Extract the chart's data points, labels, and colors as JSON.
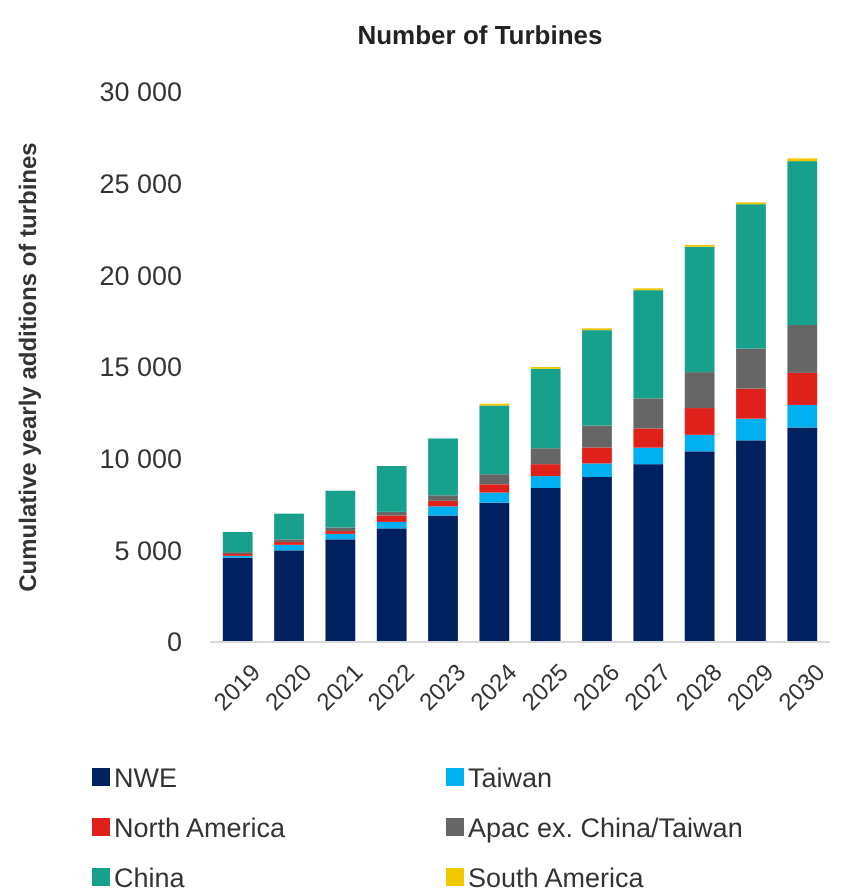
{
  "chart_data": {
    "type": "bar",
    "title": "Number of Turbines",
    "ylabel": "Cumulative yearly additions of turbines",
    "stacked": true,
    "legend": "bottom",
    "grid": false,
    "categories": [
      "2019",
      "2020",
      "2021",
      "2022",
      "2023",
      "2024",
      "2025",
      "2026",
      "2027",
      "2028",
      "2029",
      "2030"
    ],
    "ylim": [
      0,
      30000
    ],
    "yticks": [
      0,
      {
        "value": 5000,
        "label": "5 000"
      },
      {
        "value": 10000,
        "label": "10 000"
      },
      {
        "value": 15000,
        "label": "15 000"
      },
      {
        "value": 20000,
        "label": "20 000"
      },
      {
        "value": 25000,
        "label": "25 000"
      },
      {
        "value": 30000,
        "label": "30 000"
      }
    ],
    "series": [
      {
        "name": "NWE",
        "color": "#002060",
        "values": [
          4600,
          5000,
          5600,
          6200,
          6900,
          7600,
          8400,
          9000,
          9700,
          10400,
          11000,
          11700
        ]
      },
      {
        "name": "Taiwan",
        "color": "#00b0f0",
        "values": [
          100,
          300,
          300,
          350,
          500,
          550,
          650,
          740,
          900,
          900,
          1180,
          1230
        ]
      },
      {
        "name": "North America",
        "color": "#e0201b",
        "values": [
          100,
          150,
          150,
          350,
          300,
          450,
          650,
          870,
          1050,
          1460,
          1640,
          1750
        ]
      },
      {
        "name": "Apac ex. China/Taiwan",
        "color": "#666666",
        "values": [
          100,
          150,
          200,
          200,
          300,
          550,
          870,
          1200,
          1640,
          1960,
          2180,
          2610
        ]
      },
      {
        "name": "China",
        "color": "#17a08c",
        "values": [
          1100,
          1400,
          2000,
          2500,
          3100,
          3750,
          4330,
          5200,
          5900,
          6840,
          7880,
          8940
        ]
      },
      {
        "name": "South America",
        "color": "#f0c800",
        "values": [
          null,
          null,
          null,
          null,
          null,
          100,
          100,
          100,
          100,
          100,
          100,
          150
        ]
      }
    ]
  }
}
